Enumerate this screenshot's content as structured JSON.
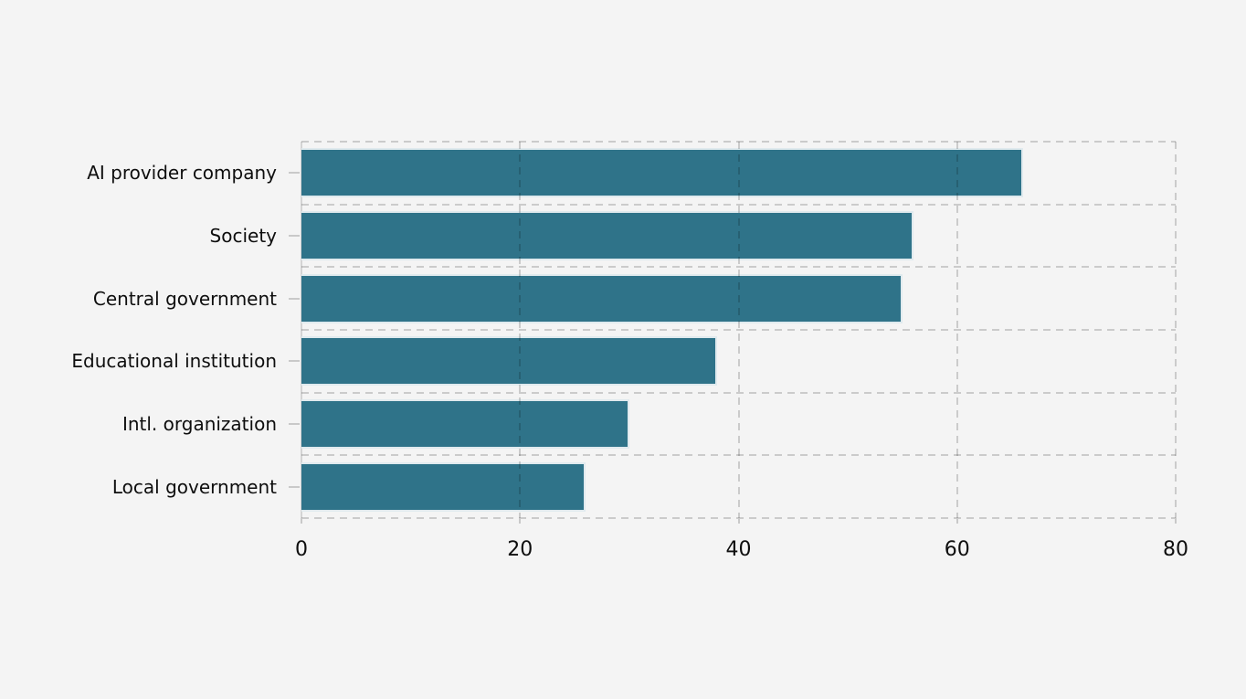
{
  "chart_data": {
    "type": "bar",
    "orientation": "horizontal",
    "title": "",
    "xlabel": "",
    "ylabel": "",
    "categories": [
      "AI provider company",
      "Society",
      "Central government",
      "Educational institution",
      "Intl. organization",
      "Local government"
    ],
    "values": [
      66,
      56,
      55,
      38,
      30,
      26
    ],
    "xlim": [
      0,
      80
    ],
    "xticks": [
      0,
      20,
      40,
      60,
      80
    ],
    "grid": "dashed, horizontal at row boundaries and vertical at x ticks",
    "legend": "none",
    "colors": {
      "bar_fill": "#2f7389",
      "bar_edge": "#e0eaee",
      "background": "#f4f4f4",
      "grid_line": "#c9c9c9",
      "axis_tick": "#c9c9c9",
      "text": "#0e0e0e"
    }
  }
}
